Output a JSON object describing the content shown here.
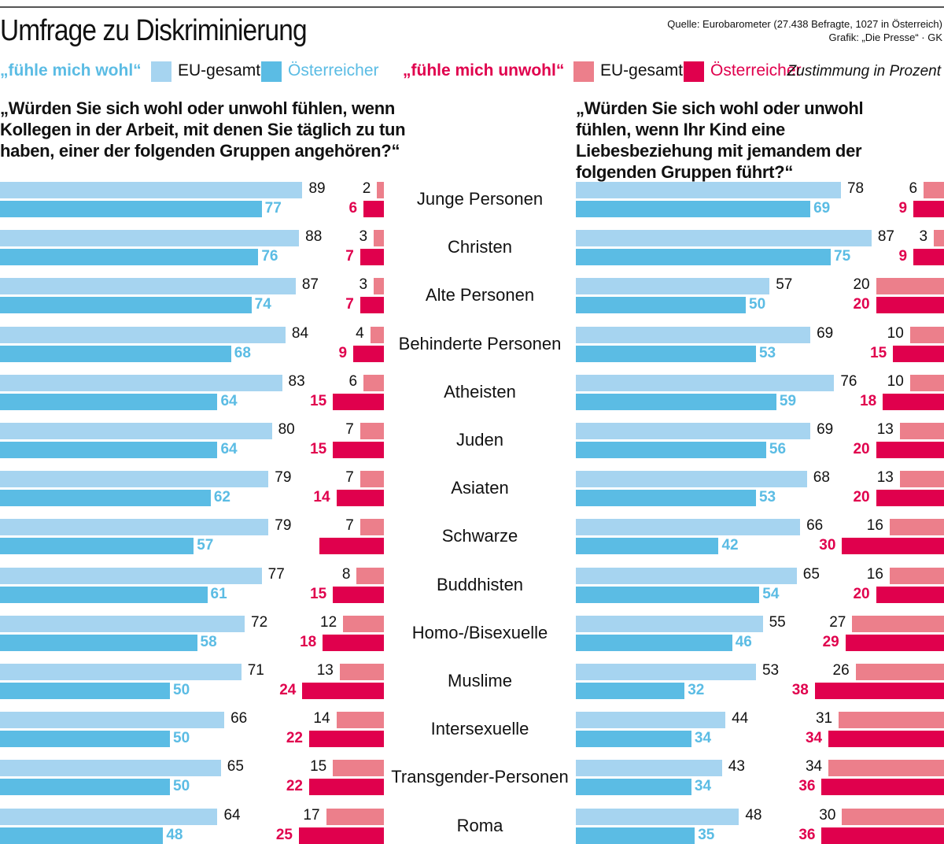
{
  "header": {
    "title": "Umfrage zu Diskriminierung",
    "source_line1": "Quelle: Eurobarometer (27.438 Befragte, 1027 in Österreich)",
    "source_line2": "Grafik: „Die Presse“ · GK"
  },
  "legend": {
    "wohl_label": "„fühle mich wohl“",
    "unwohl_label": "„fühle mich unwohl“",
    "eu": "EU-gesamt",
    "at": "Österreicher",
    "unit_note": "Zustimmung in Prozent"
  },
  "colors": {
    "wohl_eu": "#a6d4f0",
    "wohl_at": "#5bbce4",
    "unwohl_eu": "#ec7f8b",
    "unwohl_at": "#e0004d"
  },
  "chart_data": [
    {
      "type": "bar",
      "title": "„Würden Sie sich wohl oder unwohl fühlen, wenn Kollegen in der Arbeit, mit denen Sie täglich zu tun haben, einer der folgenden Gruppen angehören?“",
      "categories": [
        "Junge Personen",
        "Christen",
        "Alte Personen",
        "Behinderte Personen",
        "Atheisten",
        "Juden",
        "Asiaten",
        "Schwarze",
        "Buddhisten",
        "Homo-/Bisexuelle",
        "Muslime",
        "Intersexuelle",
        "Transgender-Personen",
        "Roma"
      ],
      "series": [
        {
          "name": "„fühle mich wohl“ EU-gesamt",
          "values": [
            89,
            88,
            87,
            84,
            83,
            80,
            79,
            79,
            77,
            72,
            71,
            66,
            65,
            64
          ]
        },
        {
          "name": "„fühle mich wohl“ Österreicher",
          "values": [
            77,
            76,
            74,
            68,
            64,
            64,
            62,
            57,
            61,
            58,
            50,
            50,
            50,
            48
          ]
        },
        {
          "name": "„fühle mich unwohl“ EU-gesamt",
          "values": [
            2,
            3,
            3,
            4,
            6,
            7,
            7,
            7,
            8,
            12,
            13,
            14,
            15,
            17
          ]
        },
        {
          "name": "„fühle mich unwohl“ Österreicher",
          "values": [
            6,
            7,
            7,
            9,
            15,
            15,
            14,
            19,
            15,
            18,
            24,
            22,
            22,
            25
          ],
          "unlabeled_index": [
            7
          ]
        }
      ]
    },
    {
      "type": "bar",
      "title": "„Würden Sie sich wohl oder unwohl fühlen, wenn Ihr Kind eine Liebesbeziehung mit jemandem der folgenden Gruppen führt?“",
      "categories": [
        "Junge Personen",
        "Christen",
        "Alte Personen",
        "Behinderte Personen",
        "Atheisten",
        "Juden",
        "Asiaten",
        "Schwarze",
        "Buddhisten",
        "Homo-/Bisexuelle",
        "Muslime",
        "Intersexuelle",
        "Transgender-Personen",
        "Roma"
      ],
      "series": [
        {
          "name": "„fühle mich wohl“ EU-gesamt",
          "values": [
            78,
            87,
            57,
            69,
            76,
            69,
            68,
            66,
            65,
            55,
            53,
            44,
            43,
            48
          ]
        },
        {
          "name": "„fühle mich wohl“ Österreicher",
          "values": [
            69,
            75,
            50,
            53,
            59,
            56,
            53,
            42,
            54,
            46,
            32,
            34,
            34,
            35
          ]
        },
        {
          "name": "„fühle mich unwohl“ EU-gesamt",
          "values": [
            6,
            3,
            20,
            10,
            10,
            13,
            13,
            16,
            16,
            27,
            26,
            31,
            34,
            30
          ]
        },
        {
          "name": "„fühle mich unwohl“ Österreicher",
          "values": [
            9,
            9,
            20,
            15,
            18,
            20,
            20,
            30,
            20,
            29,
            38,
            34,
            36,
            36
          ]
        }
      ]
    }
  ]
}
